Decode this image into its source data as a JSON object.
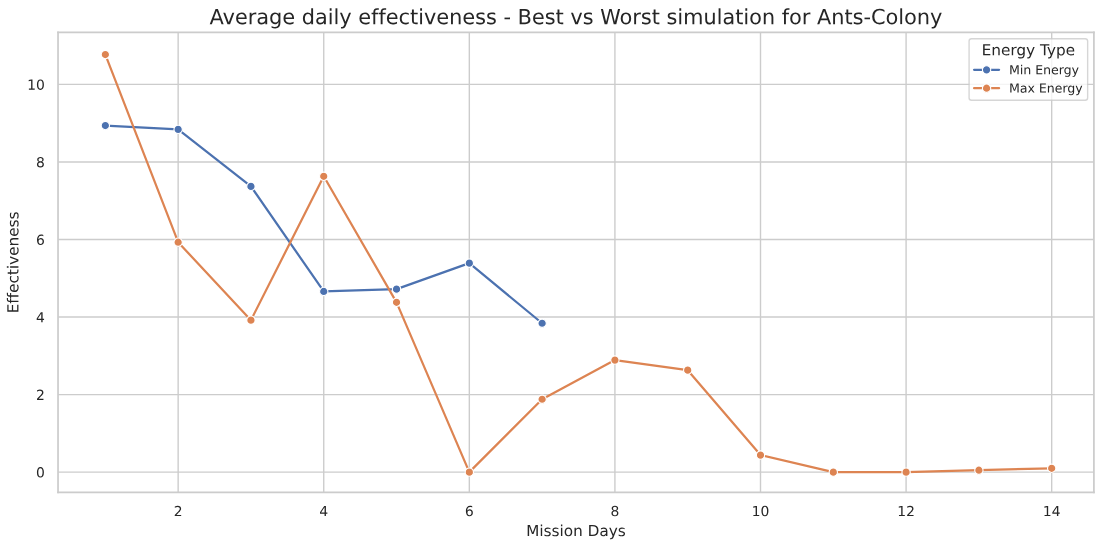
{
  "chart_data": {
    "type": "line",
    "title": "Average daily effectiveness - Best vs Worst simulation for Ants-Colony",
    "xlabel": "Mission Days",
    "ylabel": "Effectiveness",
    "legend_title": "Energy Type",
    "series": [
      {
        "name": "Min Energy",
        "color": "#4c72b0",
        "x": [
          1,
          2,
          3,
          4,
          5,
          6,
          7
        ],
        "values": [
          8.94,
          8.84,
          7.37,
          4.66,
          4.72,
          5.39,
          3.84
        ]
      },
      {
        "name": "Max Energy",
        "color": "#dd8452",
        "x": [
          1,
          2,
          3,
          4,
          5,
          6,
          7,
          8,
          9,
          10,
          11,
          12,
          13,
          14
        ],
        "values": [
          10.77,
          5.93,
          3.92,
          7.63,
          4.38,
          0.0,
          1.88,
          2.89,
          2.63,
          0.44,
          0.0,
          0.0,
          0.05,
          0.1
        ]
      }
    ],
    "xlim": [
      0.35,
      14.58
    ],
    "xticks": [
      2,
      4,
      6,
      8,
      10,
      12,
      14
    ],
    "ylim": [
      -0.52,
      11.34
    ],
    "yticks": [
      0,
      2,
      4,
      6,
      8,
      10
    ],
    "grid": true,
    "legend": "top right",
    "marker": "circle",
    "line_style": "solid"
  }
}
